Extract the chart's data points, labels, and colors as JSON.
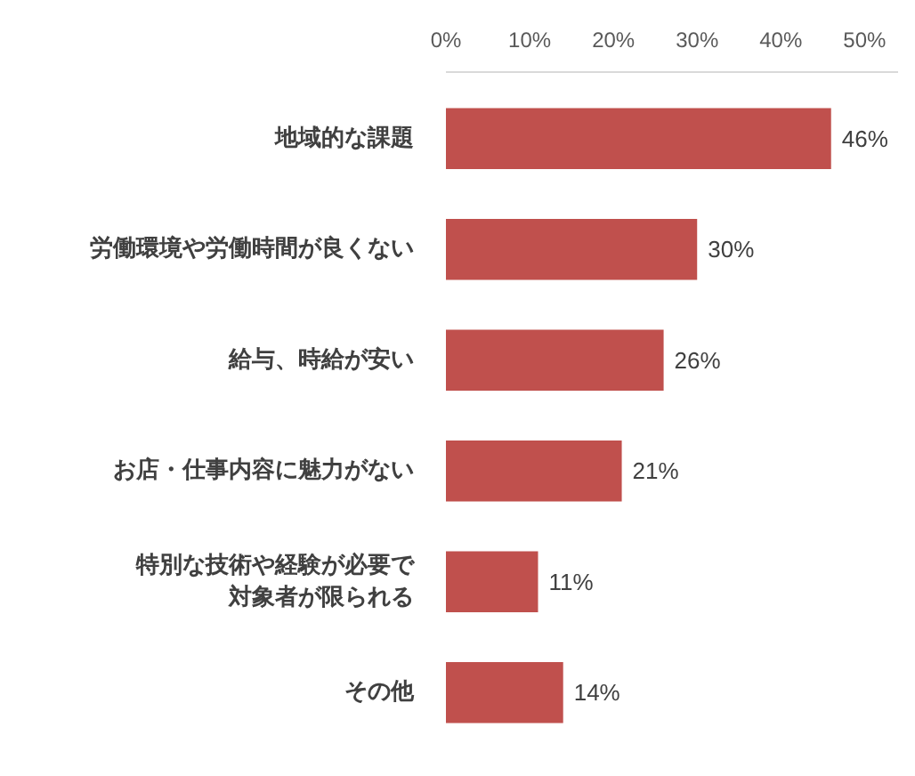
{
  "chart_data": {
    "type": "bar",
    "orientation": "horizontal",
    "categories": [
      "地域的な課題",
      "労働環境や労働時間が良くない",
      "給与、時給が安い",
      "お店・仕事内容に魅力がない",
      "特別な技術や経験が必要で対象者が限られる",
      "その他"
    ],
    "values": [
      46,
      30,
      26,
      21,
      11,
      14
    ],
    "value_labels": [
      "46%",
      "30%",
      "26%",
      "21%",
      "11%",
      "14%"
    ],
    "color": "#c0504d",
    "xlim": [
      0,
      54
    ],
    "xticks": [
      {
        "value": 0,
        "label": "0%"
      },
      {
        "value": 10,
        "label": "10%"
      },
      {
        "value": 20,
        "label": "20%"
      },
      {
        "value": 30,
        "label": "30%"
      },
      {
        "value": 40,
        "label": "40%"
      },
      {
        "value": 50,
        "label": "50%"
      }
    ],
    "tick_labels": "x",
    "grid": false,
    "legend": false
  }
}
